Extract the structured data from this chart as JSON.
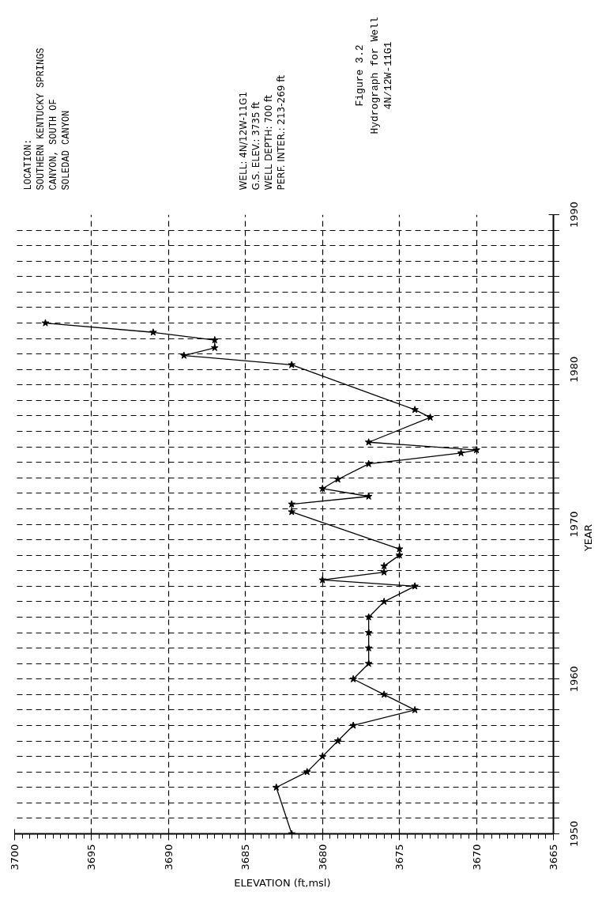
{
  "chart_data": {
    "type": "line",
    "orientation": "horizontal",
    "title": "Figure 3.2",
    "subtitle": "Hydrograph for Well\n4N/12W-11G1",
    "xlabel": "ELEVATION  (ft,msl)",
    "ylabel": "YEAR",
    "annotations": [
      "LOCATION:\nSOUTHERN KENTUCKY SPRINGS\nCANYON, SOUTH OF\nSOLEDAD CANYON",
      "WELL:    4N/12W-11G1\nG.S. ELEV.:   3735 ft\nWELL DEPTH:   700 ft\nPERF. INTER.:  213-269 ft"
    ],
    "x": [
      1950,
      1953,
      1954,
      1955,
      1956,
      1957,
      1958,
      1959,
      1960,
      1961,
      1962,
      1963,
      1964,
      1965,
      1966,
      1966.4,
      1966.9,
      1967.3,
      1968,
      1968.4,
      1970.8,
      1971.3,
      1971.8,
      1972.3,
      1972.9,
      1973.9,
      1974.6,
      1974.8,
      1975.3,
      1976.9,
      1977.4,
      1980.3,
      1980.9,
      1981.4,
      1981.9,
      1982.4,
      1983
    ],
    "series": [
      {
        "color": "#000000",
        "values": [
          3682,
          3683,
          3681,
          3680,
          3679,
          3678,
          3674,
          3676,
          3678,
          3677,
          3677,
          3677,
          3677,
          3676,
          3674,
          3680,
          3676,
          3676,
          3675,
          3675,
          3682,
          3682,
          3677,
          3680,
          3679,
          3677,
          3671,
          3670,
          3677,
          3673,
          3674,
          3682,
          3689,
          3687,
          3687,
          3691,
          3698
        ]
      }
    ],
    "xlim": [
      3700,
      3665
    ],
    "ylim": [
      1950,
      1990
    ],
    "xticks": [
      3700,
      3695,
      3690,
      3685,
      3680,
      3675,
      3670,
      3665
    ],
    "yticks": [
      1950,
      {
        "value": 1951,
        "label": null
      },
      {
        "value": 1952,
        "label": null
      },
      {
        "value": 1953,
        "label": null
      },
      {
        "value": 1954,
        "label": null
      },
      {
        "value": 1955,
        "label": null
      },
      {
        "value": 1956,
        "label": null
      },
      {
        "value": 1957,
        "label": null
      },
      {
        "value": 1958,
        "label": null
      },
      {
        "value": 1959,
        "label": null
      },
      1960,
      {
        "value": 1961,
        "label": null
      },
      {
        "value": 1962,
        "label": null
      },
      {
        "value": 1963,
        "label": null
      },
      {
        "value": 1964,
        "label": null
      },
      {
        "value": 1965,
        "label": null
      },
      {
        "value": 1966,
        "label": null
      },
      {
        "value": 1967,
        "label": null
      },
      {
        "value": 1968,
        "label": null
      },
      {
        "value": 1969,
        "label": null
      },
      1970,
      {
        "value": 1971,
        "label": null
      },
      {
        "value": 1972,
        "label": null
      },
      {
        "value": 1973,
        "label": null
      },
      {
        "value": 1974,
        "label": null
      },
      {
        "value": 1975,
        "label": null
      },
      {
        "value": 1976,
        "label": null
      },
      {
        "value": 1977,
        "label": null
      },
      {
        "value": 1978,
        "label": null
      },
      {
        "value": 1979,
        "label": null
      },
      1980,
      {
        "value": 1981,
        "label": null
      },
      {
        "value": 1982,
        "label": null
      },
      {
        "value": 1983,
        "label": null
      },
      {
        "value": 1984,
        "label": null
      },
      {
        "value": 1985,
        "label": null
      },
      {
        "value": 1986,
        "label": null
      },
      {
        "value": 1987,
        "label": null
      },
      {
        "value": 1988,
        "label": null
      },
      {
        "value": 1989,
        "label": null
      },
      1990
    ],
    "grid": true,
    "marker": "star",
    "line_style": "solid"
  }
}
